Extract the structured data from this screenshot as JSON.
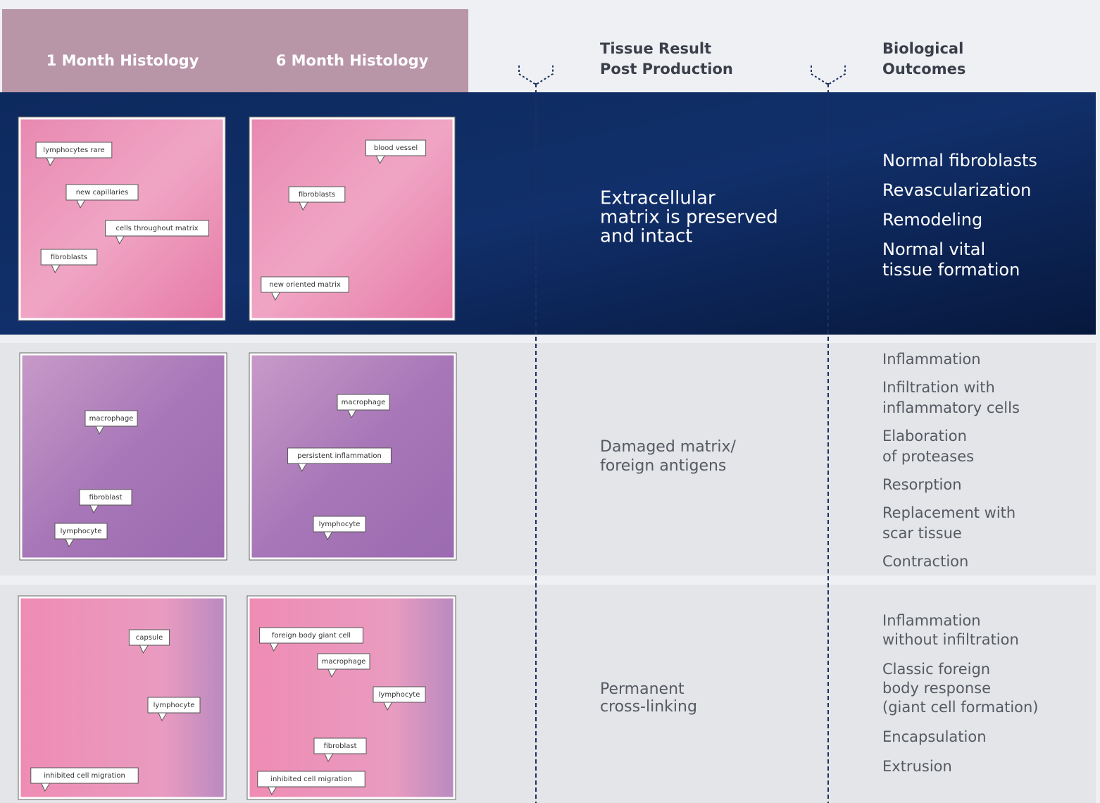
{
  "header": {
    "month1": "1 Month Histology",
    "month6": "6 Month Histology",
    "tissue_result": [
      "Tissue Result",
      "Post Production"
    ],
    "outcomes": [
      "Biological",
      "Outcomes"
    ]
  },
  "rows": [
    {
      "month1_labels": [
        "lymphocytes rare",
        "new capillaries",
        "cells throughout matrix",
        "fibroblasts"
      ],
      "month6_labels": [
        "blood vessel",
        "fibroblasts",
        "new oriented matrix"
      ],
      "result": [
        "Extracellular",
        "matrix is preserved",
        "and intact"
      ],
      "outcomes": [
        [
          "Normal fibroblasts"
        ],
        [
          "Revascularization"
        ],
        [
          "Remodeling"
        ],
        [
          "Normal vital",
          "tissue formation"
        ]
      ]
    },
    {
      "month1_labels": [
        "macrophage",
        "fibroblast",
        "lymphocyte"
      ],
      "month6_labels": [
        "macrophage",
        "persistent inflammation",
        "lymphocyte"
      ],
      "result": [
        "Damaged matrix/",
        "foreign antigens"
      ],
      "outcomes": [
        [
          "Inflammation"
        ],
        [
          "Infiltration with",
          "inflammatory cells"
        ],
        [
          "Elaboration",
          "of proteases"
        ],
        [
          "Resorption"
        ],
        [
          "Replacement with",
          "scar tissue"
        ],
        [
          "Contraction"
        ]
      ]
    },
    {
      "month1_labels": [
        "capsule",
        "lymphocyte",
        "inhibited cell migration"
      ],
      "month6_labels": [
        "foreign body giant cell",
        "macrophage",
        "lymphocyte",
        "fibroblast",
        "inhibited cell migration"
      ],
      "result": [
        "Permanent",
        "cross-linking"
      ],
      "outcomes": [
        [
          "Inflammation",
          "without infiltration"
        ],
        [
          "Classic foreign",
          "body response",
          "(giant cell formation)"
        ],
        [
          "Encapsulation"
        ],
        [
          "Extrusion"
        ]
      ]
    }
  ]
}
